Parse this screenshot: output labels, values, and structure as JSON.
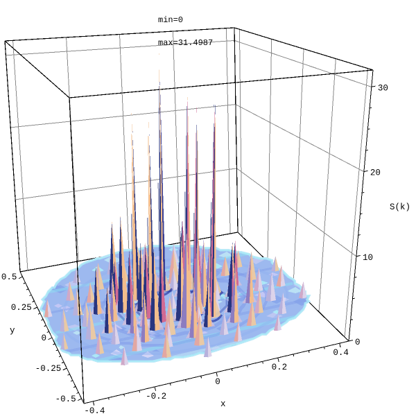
{
  "title": {
    "line1": "min=0",
    "line2": "max=31.4987"
  },
  "axes": {
    "x": {
      "label": "x",
      "ticks": [
        "-0.4",
        "-0.2",
        "0",
        "0.2",
        "0.4"
      ],
      "tick_values": [
        -0.4,
        -0.2,
        0,
        0.2,
        0.4
      ],
      "minor_step": 0.05,
      "range": [
        -0.4,
        0.4
      ]
    },
    "y": {
      "label": "y",
      "ticks": [
        "0.5",
        "0.25",
        "0",
        "-0.25",
        "-0.5"
      ],
      "tick_values": [
        0.5,
        0.25,
        0,
        -0.25,
        -0.5
      ],
      "minor_step": 0.05,
      "range": [
        -0.5,
        0.5
      ]
    },
    "z": {
      "label": "S(k)",
      "ticks": [
        "0",
        "10",
        "20",
        "30"
      ],
      "tick_values": [
        0,
        10,
        20,
        30
      ],
      "minor_step": 2.5,
      "range": [
        0,
        30
      ]
    }
  },
  "chart_data": {
    "type": "surface3d",
    "title": "min=0, max=31.4987",
    "description": "3D surface plot of the structure factor S(k) over the k-plane (x,y): sharp decagonal Bragg peaks of a quasicrystal diffraction pattern rising from a low corrugated background",
    "min": 0,
    "max": 31.4987,
    "xlabel": "x",
    "ylabel": "y",
    "zlabel": "S(k)",
    "x_range": [
      -0.4,
      0.4
    ],
    "y_range": [
      -0.5,
      0.5
    ],
    "z_range": [
      0,
      30
    ],
    "grid": true,
    "tall_peaks": [
      {
        "x": 0.012,
        "y": 0.16,
        "h": 31.5
      },
      {
        "x": 0.097,
        "y": 0.133,
        "h": 28.5
      },
      {
        "x": -0.094,
        "y": 0.129,
        "h": 24.5
      },
      {
        "x": -0.05,
        "y": 0.085,
        "h": 24.0
      },
      {
        "x": 0.065,
        "y": -0.066,
        "h": 27.5
      },
      {
        "x": 0.103,
        "y": -0.13,
        "h": 27.0
      },
      {
        "x": 0.162,
        "y": 0.053,
        "h": 26.5
      }
    ],
    "medium_peaks": [
      {
        "x": 0.1,
        "y": 0.032,
        "h": 9.0
      },
      {
        "x": 0.062,
        "y": 0.085,
        "h": 10.0
      },
      {
        "x": -0.1,
        "y": 0.032,
        "h": 8.5
      },
      {
        "x": -0.1,
        "y": -0.032,
        "h": 9.0
      },
      {
        "x": -0.062,
        "y": -0.085,
        "h": 8.0
      },
      {
        "x": 0.0,
        "y": -0.105,
        "h": 11.0
      },
      {
        "x": 0.062,
        "y": -0.085,
        "h": 9.5
      },
      {
        "x": 0.1,
        "y": -0.032,
        "h": 8.5
      },
      {
        "x": -0.162,
        "y": 0.053,
        "h": 12.0
      },
      {
        "x": -0.162,
        "y": -0.053,
        "h": 9.0
      },
      {
        "x": -0.1,
        "y": -0.137,
        "h": 10.0
      },
      {
        "x": 0.0,
        "y": -0.17,
        "h": 12.0
      }
    ],
    "peak_rings": [
      {
        "r": 0.21,
        "offset_deg": 0,
        "heights": [
          7,
          5,
          4.5,
          5,
          5.5,
          6,
          5,
          4.5,
          5.5,
          6.5
        ]
      },
      {
        "r": 0.26,
        "offset_deg": 18,
        "heights": [
          6,
          6.5,
          7,
          9.5,
          6,
          5.5,
          6,
          6.5,
          7,
          6
        ]
      },
      {
        "r": 0.155,
        "offset_deg": 0,
        "heights": [
          2.5,
          2.2,
          2.8,
          2.4,
          2.6,
          2.3,
          2.7,
          2.4,
          2.2,
          2.6
        ]
      },
      {
        "r": 0.305,
        "offset_deg": 0,
        "heights": [
          3,
          2.6,
          3.2,
          2.8,
          2.5,
          3.1,
          2.7,
          3,
          2.6,
          2.9
        ]
      },
      {
        "r": 0.33,
        "offset_deg": 18,
        "heights": [
          3.8,
          3.2,
          4,
          3.5,
          3.3,
          3.9,
          3.4,
          3.6,
          3.1,
          3.7
        ]
      },
      {
        "r": 0.385,
        "offset_deg": 0,
        "heights": [
          2.8,
          2.3,
          2.6,
          3,
          2.4,
          2.7,
          2.5,
          2.9,
          2.3,
          2.6
        ]
      },
      {
        "r": 0.435,
        "offset_deg": 18,
        "heights": [
          2,
          1.8,
          2.2,
          1.9,
          2.1,
          1.8,
          2,
          2.2,
          1.9,
          2.1
        ]
      }
    ],
    "center_bump": {
      "x": 0,
      "y": 0,
      "h": 2.2
    },
    "valley_rings": [
      {
        "r": 0.125,
        "color": "#2a3ba2",
        "width": 3,
        "opacity": 0.5
      },
      {
        "r": 0.185,
        "color": "#3448b0",
        "width": 3,
        "opacity": 0.38
      },
      {
        "r": 0.245,
        "color": "#7d97e8",
        "width": 5,
        "opacity": 0.5
      },
      {
        "r": 0.315,
        "color": "#7d97e8",
        "width": 4,
        "opacity": 0.45
      },
      {
        "r": 0.385,
        "color": "#8fb0f0",
        "width": 4,
        "opacity": 0.4
      }
    ],
    "footprint": {
      "rx": 0.465,
      "ry_back": 0.52,
      "ry_front": 0.42,
      "clip_x": 0.43,
      "clip_y": 0.535
    },
    "colors": {
      "base": "#9db9ef",
      "edge_band": "#aceef7",
      "patches": [
        "#aeeef8",
        "#cac9f6",
        "#86a3ea",
        "#dcd9f8",
        "#bfe7f6",
        "#c3c9f2"
      ],
      "streak_cyan": "#8fdff2",
      "valley_dark": "#1e2f9e",
      "spike_navy": "#28357f",
      "spike_peach": "#f2bd8d",
      "spike_rose": "#d06a94",
      "spike_purple": "#8d7cc0",
      "bump_pink": "#e2a7a2",
      "bump_tan": "#e9c9a5",
      "bump_mauve": "#cfa9c8",
      "bump_shadow": "#b7b1dc",
      "box_edge": "#000000",
      "grid_gray": "#8a8a8a"
    }
  }
}
